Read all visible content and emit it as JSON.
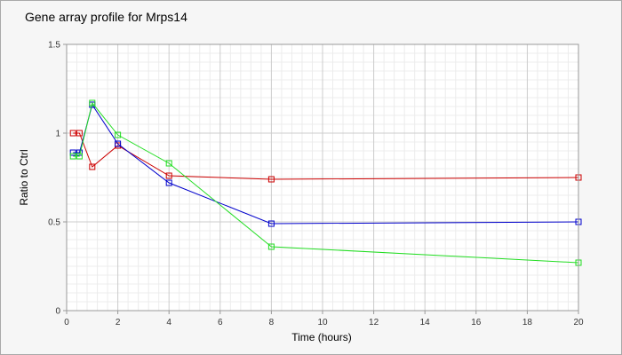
{
  "chart_data": {
    "type": "line",
    "title": "Gene array profile for Mrps14",
    "xlabel": "Time (hours)",
    "ylabel": "Ratio to Ctrl",
    "xlim": [
      0,
      20
    ],
    "ylim": [
      0,
      1.5
    ],
    "xticks": [
      0,
      2,
      4,
      6,
      8,
      10,
      12,
      14,
      16,
      18,
      20
    ],
    "yticks": [
      0,
      0.5,
      1,
      1.5
    ],
    "ytick_labels": [
      "0",
      "0.5",
      "1",
      "1.5"
    ],
    "grid": true,
    "legend": "none",
    "series": [
      {
        "color": "#cc0000",
        "x": [
          0.25,
          0.5,
          1,
          2,
          4,
          8,
          20
        ],
        "y": [
          1.0,
          1.0,
          0.81,
          0.93,
          0.76,
          0.74,
          0.75
        ]
      },
      {
        "color": "#0000cc",
        "x": [
          0.25,
          0.5,
          1,
          2,
          4,
          8,
          20
        ],
        "y": [
          0.89,
          0.89,
          1.16,
          0.94,
          0.72,
          0.49,
          0.5
        ]
      },
      {
        "color": "#22dd22",
        "x": [
          0.25,
          0.5,
          1,
          2,
          4,
          8,
          20
        ],
        "y": [
          0.87,
          0.87,
          1.17,
          0.99,
          0.83,
          0.36,
          0.27
        ]
      }
    ]
  }
}
